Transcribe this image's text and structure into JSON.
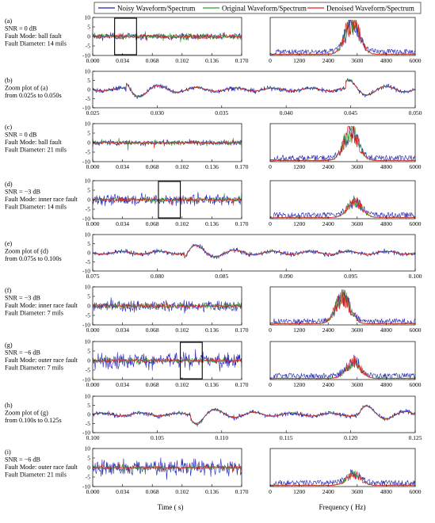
{
  "legend": {
    "placement": "top-center",
    "items": [
      {
        "label": "Noisy Waveform/Spectrum",
        "color": "#1f1fb4"
      },
      {
        "label": "Original Waveform/Spectrum",
        "color": "#2ca02c"
      },
      {
        "label": "Denoised Waveform/Spectrum",
        "color": "#e02020"
      }
    ]
  },
  "axis_titles": {
    "time": "Time ( s)",
    "frequency": "Frequency ( Hz)"
  },
  "colors": {
    "noisy": "#1f1fb4",
    "original": "#2ca02c",
    "denoised": "#e02020",
    "box": "#000000"
  },
  "chart_data": [
    {
      "id": "a",
      "type": "line",
      "title_lines": [
        "(a)",
        "SNR = 0 dB",
        "Fault Mode: ball fault",
        "Fault Diameter: 14 mils"
      ],
      "xlim": [
        0,
        0.17
      ],
      "ylim": [
        -10,
        10
      ],
      "x_ticks": [
        "0.000",
        "0.034",
        "0.068",
        "0.102",
        "0.136",
        "0.170"
      ],
      "y_ticks": [
        "10",
        "5",
        "0",
        "-5",
        "-10"
      ],
      "amplitudes": {
        "noisy": 1.2,
        "original": 1.8,
        "denoised": 1.4
      },
      "highlight_range_s": [
        0.025,
        0.05
      ]
    },
    {
      "id": "a_spectrum",
      "type": "line",
      "xlim": [
        0,
        6000
      ],
      "x_ticks": [
        "0",
        "1200",
        "2400",
        "3600",
        "4800",
        "6000"
      ],
      "peak_hz": 3400,
      "peak_level": 0.9
    },
    {
      "id": "b",
      "type": "line",
      "title_lines": [
        "(b)",
        "Zoom plot of (a)",
        "from 0.025s to 0.050s"
      ],
      "xlim": [
        0.025,
        0.05
      ],
      "ylim": [
        -10,
        10
      ],
      "x_ticks": [
        "0.025",
        "0.030",
        "0.035",
        "0.040",
        "0.045",
        "0.050"
      ],
      "y_ticks": [
        "10",
        "5",
        "0",
        "-5",
        "-10"
      ],
      "impulse_times_s": [
        0.028,
        0.045
      ]
    },
    {
      "id": "c",
      "type": "line",
      "title_lines": [
        "(c)",
        "SNR = 0 dB",
        "Fault Mode: ball fault",
        "Fault Diameter: 21 mils"
      ],
      "xlim": [
        0,
        0.17
      ],
      "ylim": [
        -10,
        10
      ],
      "x_ticks": [
        "0.000",
        "0.034",
        "0.068",
        "0.102",
        "0.136",
        "0.170"
      ],
      "y_ticks": [
        "10",
        "5",
        "0",
        "-5",
        "-10"
      ],
      "amplitudes": {
        "noisy": 1.0,
        "original": 1.3,
        "denoised": 1.0
      }
    },
    {
      "id": "c_spectrum",
      "type": "line",
      "xlim": [
        0,
        6000
      ],
      "x_ticks": [
        "0",
        "1200",
        "2400",
        "3600",
        "4800",
        "6000"
      ],
      "peak_hz": 3350,
      "peak_level": 0.8
    },
    {
      "id": "d",
      "type": "line",
      "title_lines": [
        "(d)",
        "SNR = −3 dB",
        "Fault Mode: inner race fault",
        "Fault Diameter: 14 mils"
      ],
      "xlim": [
        0,
        0.17
      ],
      "ylim": [
        -10,
        10
      ],
      "x_ticks": [
        "0.000",
        "0.034",
        "0.068",
        "0.102",
        "0.136",
        "0.170"
      ],
      "y_ticks": [
        "10",
        "5",
        "0",
        "-5",
        "-10"
      ],
      "amplitudes": {
        "noisy": 2.0,
        "original": 1.5,
        "denoised": 1.2
      },
      "highlight_range_s": [
        0.075,
        0.1
      ]
    },
    {
      "id": "d_spectrum",
      "type": "line",
      "xlim": [
        0,
        6000
      ],
      "x_ticks": [
        "0",
        "1200",
        "2400",
        "3600",
        "4800",
        "6000"
      ],
      "peak_hz": 3500,
      "peak_level": 0.45
    },
    {
      "id": "e",
      "type": "line",
      "title_lines": [
        "(e)",
        "Zoom plot of (d)",
        "from 0.075s to 0.100s"
      ],
      "xlim": [
        0.075,
        0.1
      ],
      "ylim": [
        -10,
        10
      ],
      "x_ticks": [
        "0.075",
        "0.080",
        "0.085",
        "0.090",
        "0.095",
        "0.100"
      ],
      "y_ticks": [
        "10",
        "5",
        "0",
        "-5",
        "-10"
      ],
      "impulse_times_s": [
        0.0825
      ]
    },
    {
      "id": "f",
      "type": "line",
      "title_lines": [
        "(f)",
        "SNR = −3 dB",
        "Fault Mode: inner race fault",
        "Fault Diameter: 7 mils"
      ],
      "xlim": [
        0,
        0.17
      ],
      "ylim": [
        -10,
        10
      ],
      "x_ticks": [
        "0.000",
        "0.034",
        "0.068",
        "0.102",
        "0.136",
        "0.170"
      ],
      "y_ticks": [
        "10",
        "5",
        "0",
        "-5",
        "-10"
      ],
      "amplitudes": {
        "noisy": 2.2,
        "original": 1.6,
        "denoised": 1.3
      }
    },
    {
      "id": "f_spectrum",
      "type": "line",
      "xlim": [
        0,
        6000
      ],
      "x_ticks": [
        "0",
        "1200",
        "2400",
        "3600",
        "4800",
        "6000"
      ],
      "peak_hz": 3000,
      "peak_level": 0.75
    },
    {
      "id": "g",
      "type": "line",
      "title_lines": [
        "(g)",
        "SNR = −6 dB",
        "Fault Mode: outer race fault",
        "Fault Diameter: 7 mils"
      ],
      "xlim": [
        0,
        0.17
      ],
      "ylim": [
        -10,
        10
      ],
      "x_ticks": [
        "0.000",
        "0.034",
        "0.068",
        "0.102",
        "0.136",
        "0.170"
      ],
      "y_ticks": [
        "10",
        "5",
        "0",
        "-5",
        "-10"
      ],
      "amplitudes": {
        "noisy": 3.0,
        "original": 1.4,
        "denoised": 1.1
      },
      "highlight_range_s": [
        0.1,
        0.125
      ]
    },
    {
      "id": "g_spectrum",
      "type": "line",
      "xlim": [
        0,
        6000
      ],
      "x_ticks": [
        "0",
        "1200",
        "2400",
        "3600",
        "4800",
        "6000"
      ],
      "peak_hz": 3450,
      "peak_level": 0.45
    },
    {
      "id": "h",
      "type": "line",
      "title_lines": [
        "(h)",
        "Zoom plot of (g)",
        "from 0.100s to 0.125s"
      ],
      "xlim": [
        0.1,
        0.125
      ],
      "ylim": [
        -10,
        10
      ],
      "x_ticks": [
        "0.100",
        "0.105",
        "0.110",
        "0.115",
        "0.120",
        "0.125"
      ],
      "y_ticks": [
        "10",
        "5",
        "0",
        "-5",
        "-10"
      ],
      "impulse_times_s": [
        0.108,
        0.121
      ]
    },
    {
      "id": "i",
      "type": "line",
      "title_lines": [
        "(i)",
        "SNR = −6 dB",
        "Fault Mode: outer race fault",
        "Fault Diameter: 21 mils"
      ],
      "xlim": [
        0,
        0.17
      ],
      "ylim": [
        -10,
        10
      ],
      "x_ticks": [
        "0.000",
        "0.034",
        "0.068",
        "0.102",
        "0.136",
        "0.170"
      ],
      "y_ticks": [
        "10",
        "5",
        "0",
        "-5",
        "-10"
      ],
      "amplitudes": {
        "noisy": 3.0,
        "original": 1.5,
        "denoised": 1.0
      }
    },
    {
      "id": "i_spectrum",
      "type": "line",
      "xlim": [
        0,
        6000
      ],
      "x_ticks": [
        "0",
        "1200",
        "2400",
        "3600",
        "4800",
        "6000"
      ],
      "peak_hz": 3450,
      "peak_level": 0.3
    }
  ]
}
